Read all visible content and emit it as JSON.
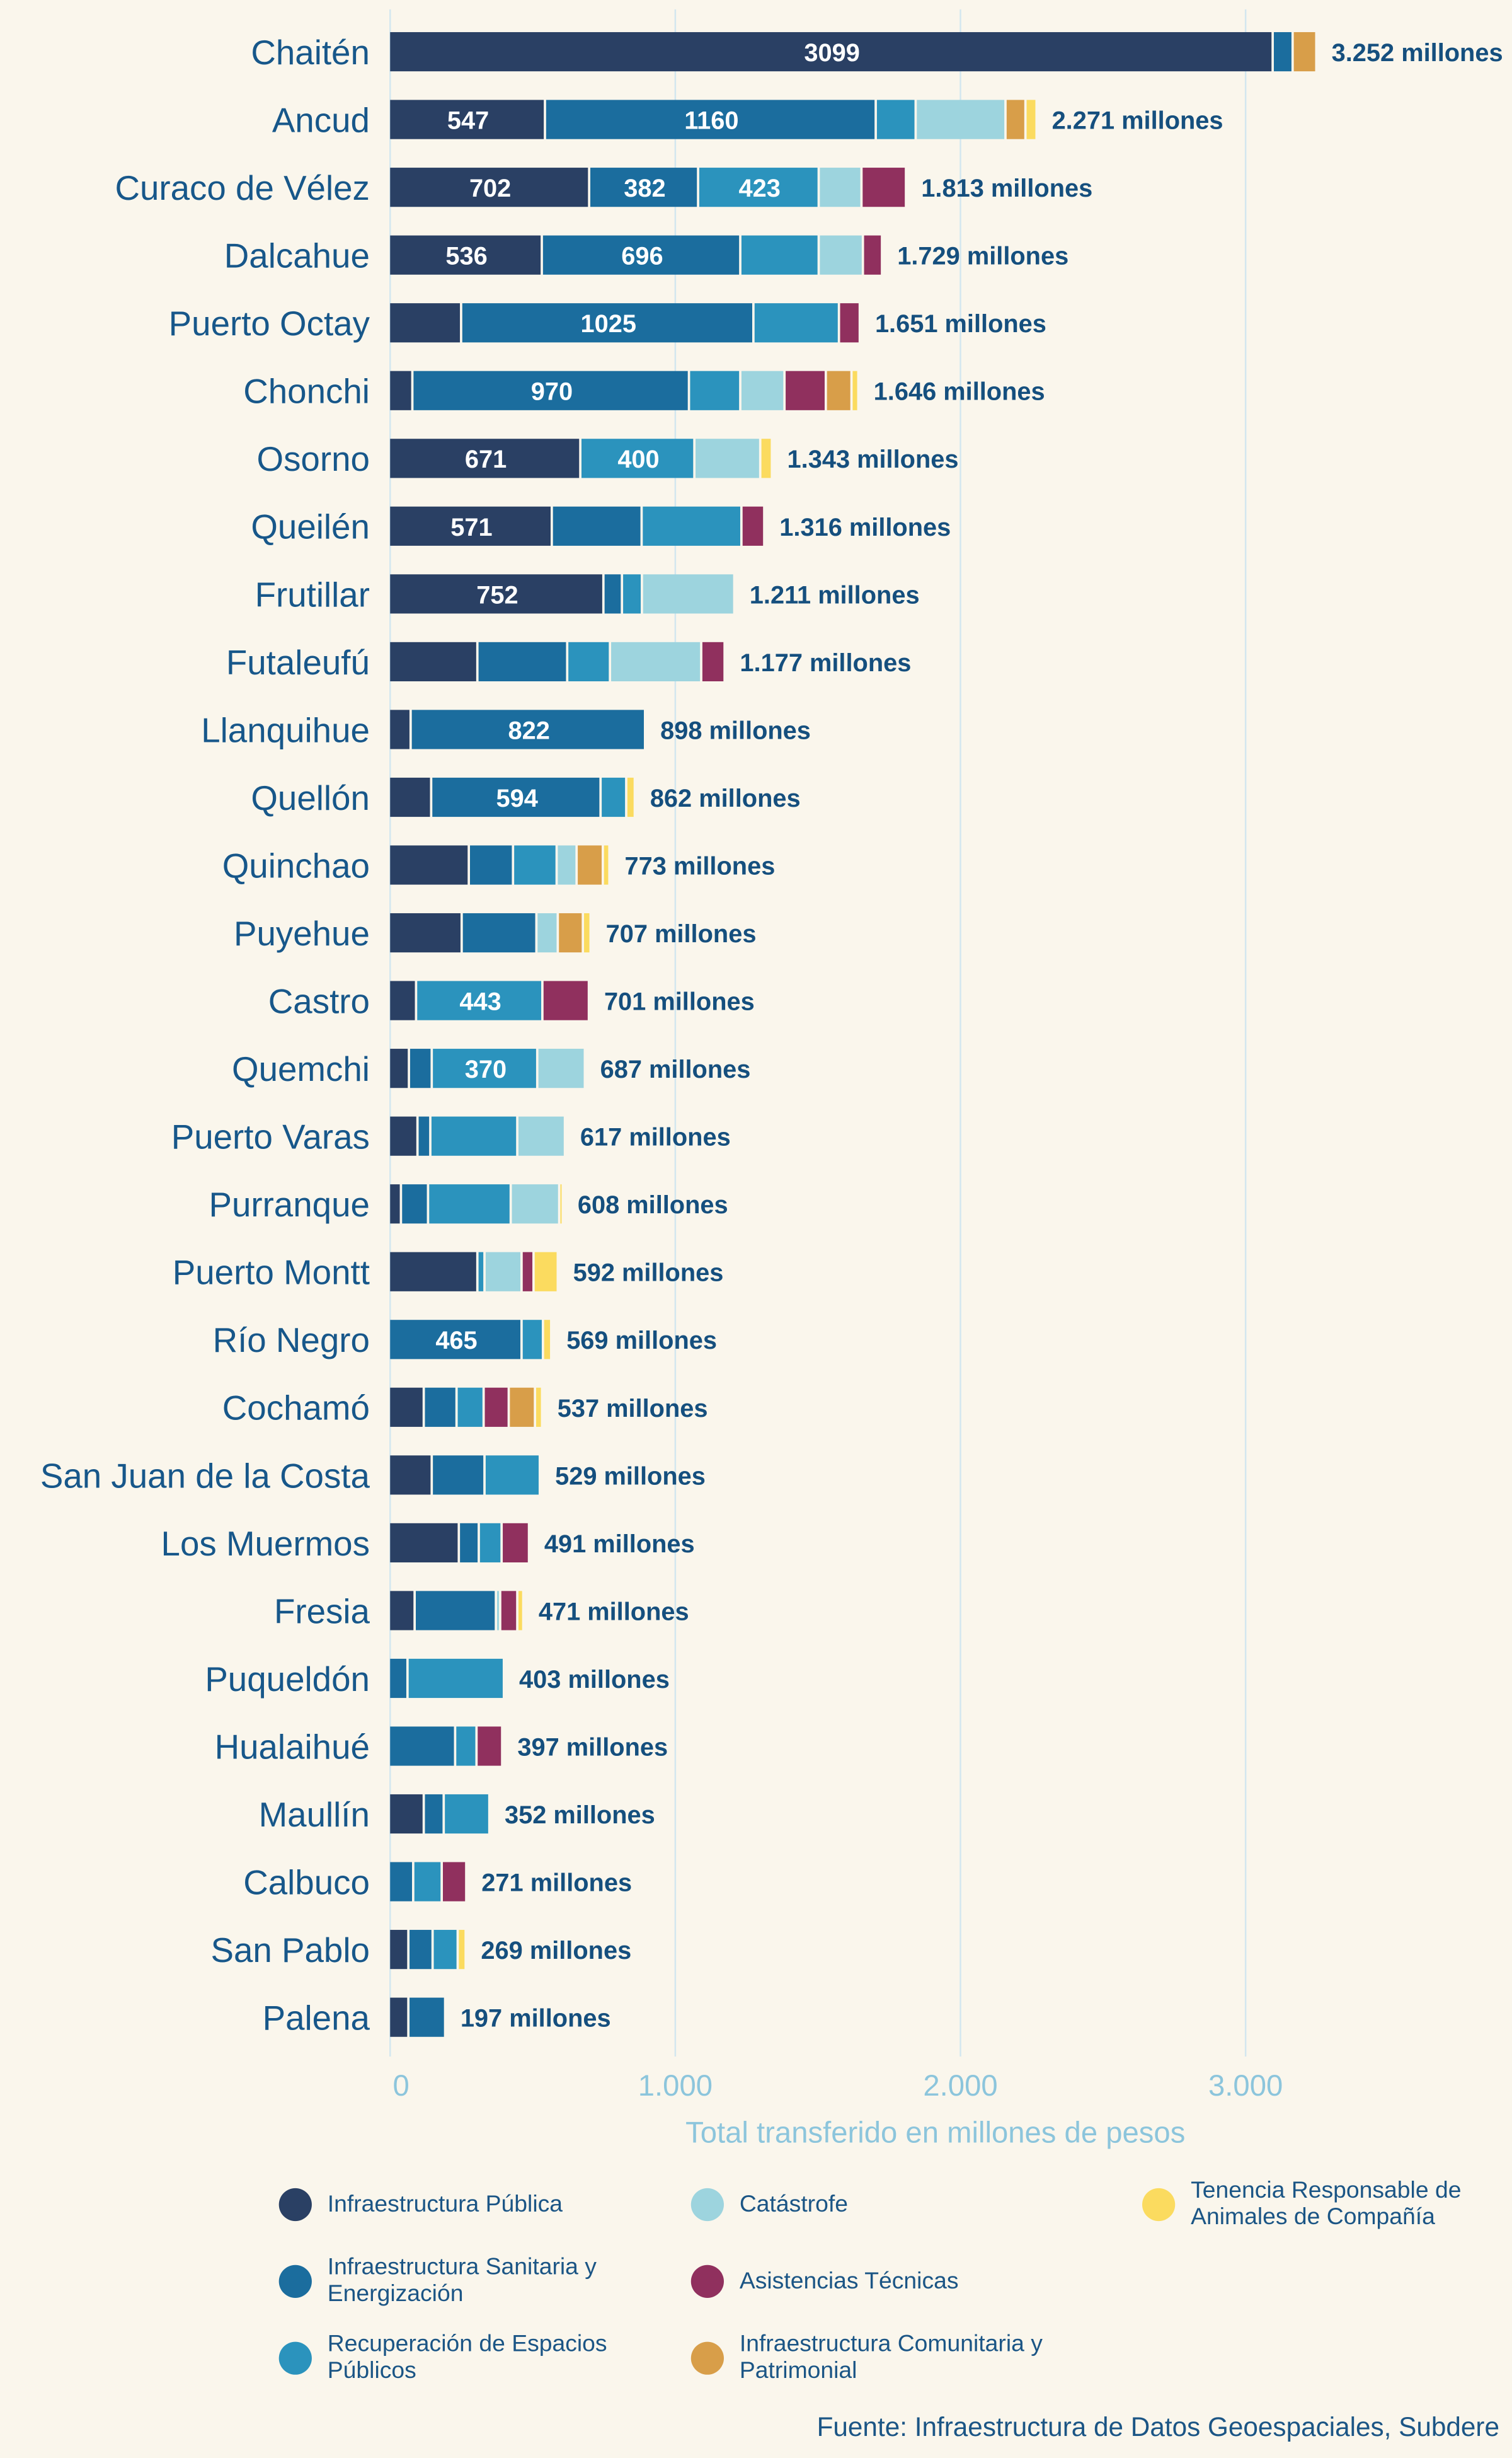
{
  "chart_data": {
    "type": "bar",
    "orientation": "horizontal",
    "stacked": true,
    "categories": [
      "Chaitén",
      "Ancud",
      "Curaco de Vélez",
      "Dalcahue",
      "Puerto Octay",
      "Chonchi",
      "Osorno",
      "Queilén",
      "Frutillar",
      "Futaleufú",
      "Llanquihue",
      "Quellón",
      "Quinchao",
      "Puyehue",
      "Castro",
      "Quemchi",
      "Puerto Varas",
      "Purranque",
      "Puerto Montt",
      "Río Negro",
      "Cochamó",
      "San Juan de la Costa",
      "Los Muermos",
      "Fresia",
      "Puqueldón",
      "Hualaihué",
      "Maullín",
      "Calbuco",
      "San Pablo",
      "Palena"
    ],
    "series": [
      {
        "name": "Infraestructura Pública",
        "color": "#2a4064",
        "values": [
          3099,
          547,
          702,
          536,
          253,
          82,
          671,
          571,
          752,
          310,
          76,
          148,
          280,
          255,
          95,
          70,
          100,
          42,
          310,
          0,
          122,
          150,
          245,
          90,
          0,
          0,
          122,
          0,
          68,
          68
        ]
      },
      {
        "name": "Infraestructura Sanitaria y Energización",
        "color": "#1b6d9e",
        "values": [
          70,
          1160,
          382,
          696,
          1025,
          970,
          0,
          315,
          65,
          315,
          822,
          594,
          155,
          262,
          0,
          80,
          45,
          95,
          0,
          465,
          115,
          185,
          70,
          285,
          65,
          232,
          70,
          85,
          85,
          129
        ]
      },
      {
        "name": "Recuperación de Espacios Públicos",
        "color": "#2b93bd",
        "values": [
          0,
          140,
          423,
          275,
          300,
          180,
          400,
          350,
          70,
          150,
          0,
          90,
          153,
          0,
          443,
          370,
          305,
          290,
          25,
          75,
          95,
          194,
          80,
          0,
          338,
          75,
          160,
          100,
          88,
          0
        ]
      },
      {
        "name": "Catástrofe",
        "color": "#9dd4de",
        "values": [
          0,
          315,
          150,
          155,
          0,
          155,
          231,
          0,
          324,
          320,
          0,
          0,
          70,
          75,
          0,
          167,
          167,
          170,
          130,
          0,
          0,
          0,
          0,
          15,
          0,
          0,
          0,
          0,
          0,
          0
        ]
      },
      {
        "name": "Asistencias Técnicas",
        "color": "#90305e",
        "values": [
          0,
          0,
          156,
          67,
          73,
          145,
          0,
          80,
          0,
          82,
          0,
          0,
          0,
          0,
          163,
          0,
          0,
          0,
          42,
          0,
          88,
          0,
          96,
          60,
          0,
          90,
          0,
          86,
          0,
          0
        ]
      },
      {
        "name": "Infraestructura Comunitaria y Patrimonial",
        "color": "#d89e49",
        "values": [
          83,
          70,
          0,
          0,
          0,
          90,
          0,
          0,
          0,
          0,
          0,
          0,
          92,
          88,
          0,
          0,
          0,
          0,
          0,
          0,
          92,
          0,
          0,
          0,
          0,
          0,
          0,
          0,
          0,
          0
        ]
      },
      {
        "name": "Tenencia Responsable de Animales de Compañía",
        "color": "#fbdb5f",
        "values": [
          0,
          39,
          0,
          0,
          0,
          24,
          41,
          0,
          0,
          0,
          0,
          30,
          23,
          27,
          0,
          0,
          0,
          11,
          85,
          29,
          25,
          0,
          0,
          21,
          0,
          0,
          0,
          0,
          28,
          0
        ]
      }
    ],
    "segment_labels_shown": [
      [
        3099
      ],
      [
        547,
        1160
      ],
      [
        702,
        382,
        423
      ],
      [
        536,
        696
      ],
      [
        1025
      ],
      [
        970
      ],
      [
        671,
        400
      ],
      [
        571
      ],
      [
        752
      ],
      [],
      [
        822
      ],
      [
        594
      ],
      [],
      [],
      [
        443
      ],
      [
        370
      ],
      [],
      [],
      [],
      [
        465
      ],
      [],
      [],
      [],
      [],
      [],
      [],
      [],
      [],
      [],
      []
    ],
    "total_labels": [
      "3.252 millones",
      "2.271 millones",
      "1.813 millones",
      "1.729 millones",
      "1.651 millones",
      "1.646 millones",
      "1.343 millones",
      "1.316 millones",
      "1.211 millones",
      "1.177 millones",
      "898 millones",
      "862 millones",
      "773 millones",
      "707 millones",
      "701 millones",
      "687 millones",
      "617 millones",
      "608 millones",
      "592 millones",
      "569 millones",
      "537 millones",
      "529 millones",
      "491 millones",
      "471 millones",
      "403 millones",
      "397 millones",
      "352 millones",
      "271 millones",
      "269 millones",
      "197 millones"
    ],
    "xlabel": "Total transferido en millones de pesos",
    "xticks": [
      0,
      1000,
      2000,
      3000
    ],
    "xtick_labels": [
      "0",
      "1.000",
      "2.000",
      "3.000"
    ],
    "xlim": [
      0,
      3300
    ],
    "grid": "vertical",
    "legend_position": "bottom"
  },
  "source": "Fuente: Infraestructura de Datos Geoespaciales, Subdere"
}
